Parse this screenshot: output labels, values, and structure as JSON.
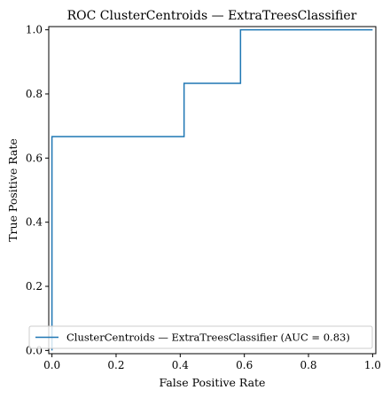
{
  "chart_data": {
    "type": "line",
    "title": "ROC ClusterCentroids — ExtraTreesClassifier",
    "xlabel": "False Positive Rate",
    "ylabel": "True Positive Rate",
    "xlim": [
      -0.01,
      1.01
    ],
    "ylim": [
      -0.01,
      1.01
    ],
    "xticks": [
      "0.0",
      "0.2",
      "0.4",
      "0.6",
      "0.8",
      "1.0"
    ],
    "yticks": [
      "0.0",
      "0.2",
      "0.4",
      "0.6",
      "0.8",
      "1.0"
    ],
    "grid": false,
    "legend_position": "lower-right",
    "series": [
      {
        "name": "ClusterCentroids — ExtraTreesClassifier (AUC = 0.83)",
        "color": "#1f77b4",
        "x": [
          0.0,
          0.0,
          0.0,
          0.412,
          0.412,
          0.588,
          0.588,
          1.0
        ],
        "y": [
          0.0,
          0.0,
          0.667,
          0.667,
          0.833,
          0.833,
          1.0,
          1.0
        ]
      }
    ]
  }
}
